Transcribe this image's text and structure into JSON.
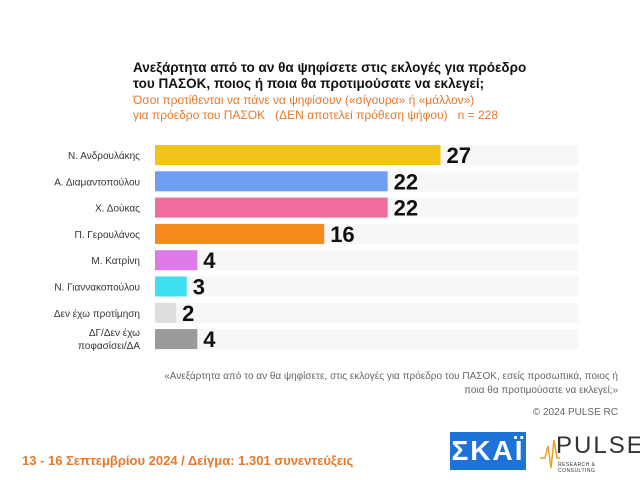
{
  "title": "Ανεξάρτητα από το αν θα ψηφίσετε στις εκλογές για πρόεδρο του ΠΑΣΟΚ, ποιος ή ποια θα προτιμούσατε να εκλεγεί;",
  "subtitle": "Όσοι προτίθενται να πάνε να ψηφίσουν («σίγουρα» ή «μάλλον»)\nγια πρόεδρο του ΠΑΣΟΚ   (ΔΕΝ αποτελεί πρόθεση ψήφου)   n = 228",
  "chart_data": {
    "type": "bar",
    "orientation": "horizontal",
    "categories": [
      "Ν. Ανδρουλάκης",
      "Α. Διαμαντοπούλου",
      "Χ. Δούκας",
      "Π. Γερουλάνος",
      "Μ. Κατρίνη",
      "Ν. Γιαννακοπούλου",
      "Δεν έχω προτίμηση",
      "ΔΓ/Δεν έχω αποφασίσει/ΔΑ"
    ],
    "values": [
      27,
      22,
      22,
      16,
      4,
      3,
      2,
      4
    ],
    "colors": [
      "#f2c319",
      "#6e9ff0",
      "#f06b9e",
      "#f5891c",
      "#df7ae9",
      "#3fdff2",
      "#dddddd",
      "#9a9a9a"
    ],
    "xlim": [
      0,
      40
    ],
    "grid": false,
    "data_labels": true
  },
  "note": "«Ανεξάρτητα από το αν θα ψηφίσετε, στις εκλογές για πρόεδρο του ΠΑΣΟΚ, εσείς προσωπικά, ποιος ή ποια θα προτιμούσατε να εκλεγεί;»",
  "copyright": "© 2024 PULSE RC",
  "footer": "13 - 16 Σεπτεμβρίου 2024  /  Δείγμα:  1.301 συνεντεύξεις",
  "logos": {
    "skai": "ΣΚΑΪ",
    "pulse": "PULSE",
    "pulse_sub": "RESEARCH & CONSULTING"
  }
}
